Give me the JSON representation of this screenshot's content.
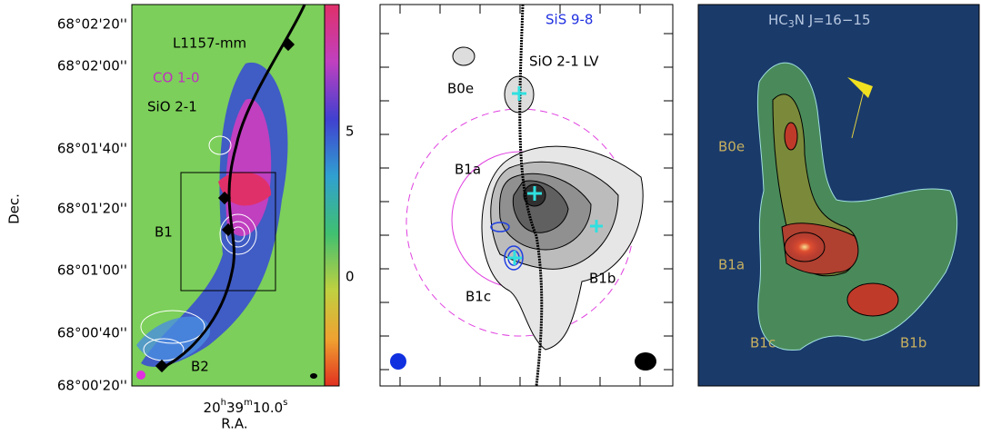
{
  "panel1": {
    "dec_label": "Dec.",
    "ra_label": "R.A.",
    "dec_ticks": [
      "68°02'20''",
      "68°02'00''",
      "68°01'40''",
      "68°01'20''",
      "68°01'00''",
      "68°00'40''",
      "68°00'20''"
    ],
    "ra_tick": {
      "h": "20",
      "h_unit": "h",
      "m": "39",
      "m_unit": "m",
      "s": "10.0",
      "s_unit": "s"
    },
    "colorbar_ticks": [
      "5",
      "0"
    ],
    "labels": {
      "source": "L1157-mm",
      "co": "CO 1-0",
      "sio": "SiO 2-1",
      "b1": "B1",
      "b2": "B2"
    }
  },
  "panel2": {
    "labels": {
      "sis": "SiS 9-8",
      "sio": "SiO 2-1 LV",
      "b0e": "B0e",
      "b1a": "B1a",
      "b1b": "B1b",
      "b1c": "B1c"
    }
  },
  "panel3": {
    "title": {
      "a": "HC",
      "sub": "3",
      "b": "N J=16−15"
    },
    "labels": {
      "b0e": "B0e",
      "b1a": "B1a",
      "b1c": "B1c",
      "b1b": "B1b"
    }
  }
}
